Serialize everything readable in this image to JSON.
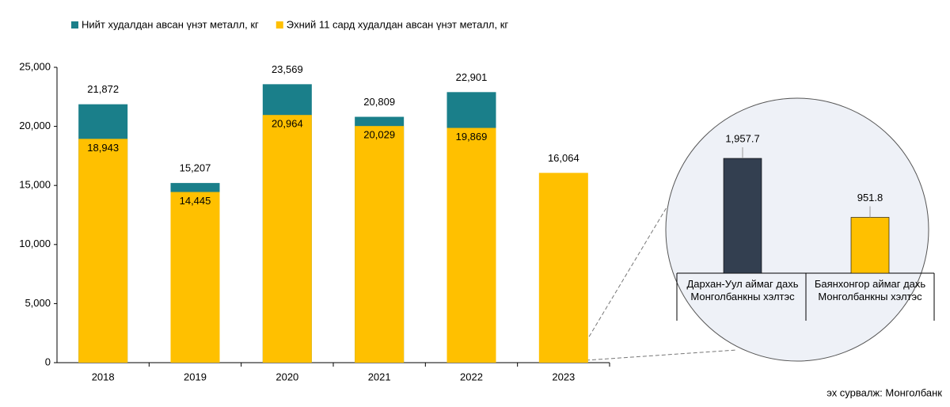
{
  "chart_data": [
    {
      "type": "bar",
      "categories": [
        "2018",
        "2019",
        "2020",
        "2021",
        "2022",
        "2023"
      ],
      "series": [
        {
          "name": "Нийт худалдан авсан үнэт металл, кг",
          "color": "#1a7f8a",
          "values": [
            21872,
            15207,
            23569,
            20809,
            22901,
            null
          ],
          "value_labels": [
            "21,872",
            "15,207",
            "23,569",
            "20,809",
            "22,901",
            null
          ]
        },
        {
          "name": "Эхний 11 сард худалдан авсан үнэт металл, кг",
          "color": "#ffc000",
          "values": [
            18943,
            14445,
            20964,
            20029,
            19869,
            16064
          ],
          "value_labels": [
            "18,943",
            "14,445",
            "20,964",
            "20,029",
            "19,869",
            "16,064"
          ]
        }
      ],
      "ylim": [
        0,
        25000
      ],
      "yticks": [
        0,
        {
          "value": 5000,
          "label": "5,000"
        },
        {
          "value": 10000,
          "label": "10,000"
        },
        {
          "value": 15000,
          "label": "15,000"
        },
        {
          "value": 20000,
          "label": "20,000"
        },
        {
          "value": 25000,
          "label": "25,000"
        }
      ],
      "legend": "top-left"
    },
    {
      "type": "bar",
      "categories": [
        "Дархан-Уул аймаг дахь Монголбанкны хэлтэс",
        "Баянхонгор аймаг дахь Монголбанкны хэлтэс"
      ],
      "values": [
        1957.7,
        951.8
      ],
      "value_labels": [
        "1,957.7",
        "951.8"
      ],
      "colors": [
        "#333f50",
        "#ffc000"
      ]
    }
  ],
  "source": "эх сурвалж: Монголбанк"
}
